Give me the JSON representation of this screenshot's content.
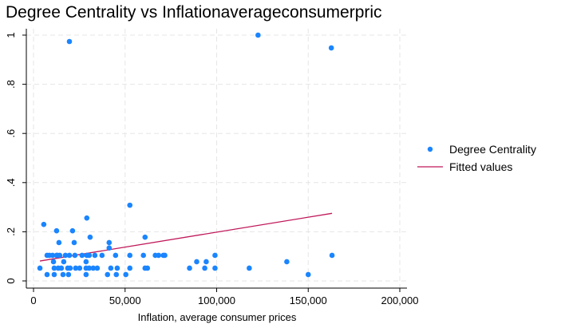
{
  "chart_data": {
    "type": "scatter",
    "title": "Degree Centrality vs Inflationaverageconsumerpric",
    "xlabel": "Inflation, average consumer prices",
    "ylabel": "",
    "xlim": [
      0,
      200000
    ],
    "ylim": [
      0,
      1
    ],
    "x_ticks": [
      0,
      50000,
      100000,
      150000,
      200000
    ],
    "x_tick_labels": [
      "0",
      "50,000",
      "100,000",
      "150,000",
      "200,000"
    ],
    "y_ticks": [
      0,
      0.2,
      0.4,
      0.6,
      0.8,
      1
    ],
    "y_tick_labels": [
      "0",
      ".2",
      ".4",
      ".6",
      ".8",
      "1"
    ],
    "grid": true,
    "legend_position": "right",
    "colors": {
      "scatter": "#1a85ff",
      "fit": "#c0185a"
    },
    "series": [
      {
        "name": "Degree Centrality",
        "kind": "scatter",
        "points": [
          [
            3500,
            0.052
          ],
          [
            5600,
            0.23
          ],
          [
            7400,
            0.026
          ],
          [
            7400,
            0.104
          ],
          [
            8700,
            0.104
          ],
          [
            10400,
            0.104
          ],
          [
            10900,
            0.078
          ],
          [
            11300,
            0.052
          ],
          [
            11300,
            0.026
          ],
          [
            12600,
            0.204
          ],
          [
            12600,
            0.104
          ],
          [
            13000,
            0.104
          ],
          [
            13500,
            0.052
          ],
          [
            13900,
            0.156
          ],
          [
            14300,
            0.104
          ],
          [
            15200,
            0.052
          ],
          [
            16100,
            0.026
          ],
          [
            16500,
            0.078
          ],
          [
            17400,
            0.104
          ],
          [
            18700,
            0.052
          ],
          [
            19100,
            0.026
          ],
          [
            19600,
            0.974
          ],
          [
            19600,
            0.104
          ],
          [
            20000,
            0.052
          ],
          [
            21300,
            0.204
          ],
          [
            22200,
            0.156
          ],
          [
            22600,
            0.104
          ],
          [
            23000,
            0.052
          ],
          [
            25200,
            0.052
          ],
          [
            26500,
            0.104
          ],
          [
            28700,
            0.078
          ],
          [
            28700,
            0.052
          ],
          [
            28700,
            0.026
          ],
          [
            29100,
            0.104
          ],
          [
            29100,
            0.256
          ],
          [
            30400,
            0.104
          ],
          [
            30400,
            0.052
          ],
          [
            30900,
            0.178
          ],
          [
            32600,
            0.052
          ],
          [
            33500,
            0.104
          ],
          [
            34800,
            0.052
          ],
          [
            37400,
            0.104
          ],
          [
            40400,
            0.026
          ],
          [
            41300,
            0.134
          ],
          [
            41300,
            0.156
          ],
          [
            42200,
            0.052
          ],
          [
            44800,
            0.104
          ],
          [
            45200,
            0.026
          ],
          [
            45700,
            0.052
          ],
          [
            50400,
            0.026
          ],
          [
            52600,
            0.104
          ],
          [
            52600,
            0.052
          ],
          [
            52600,
            0.308
          ],
          [
            60000,
            0.104
          ],
          [
            60900,
            0.052
          ],
          [
            60900,
            0.178
          ],
          [
            62200,
            0.052
          ],
          [
            66500,
            0.104
          ],
          [
            68300,
            0.104
          ],
          [
            70900,
            0.104
          ],
          [
            71700,
            0.104
          ],
          [
            85200,
            0.052
          ],
          [
            89100,
            0.078
          ],
          [
            93500,
            0.052
          ],
          [
            94300,
            0.078
          ],
          [
            99100,
            0.104
          ],
          [
            99100,
            0.052
          ],
          [
            117800,
            0.052
          ],
          [
            122600,
            1.0
          ],
          [
            138300,
            0.078
          ],
          [
            150000,
            0.026
          ],
          [
            162600,
            0.948
          ],
          [
            163000,
            0.104
          ]
        ]
      },
      {
        "name": "Fitted values",
        "kind": "line",
        "points": [
          [
            3500,
            0.081
          ],
          [
            163000,
            0.275
          ]
        ]
      }
    ]
  }
}
